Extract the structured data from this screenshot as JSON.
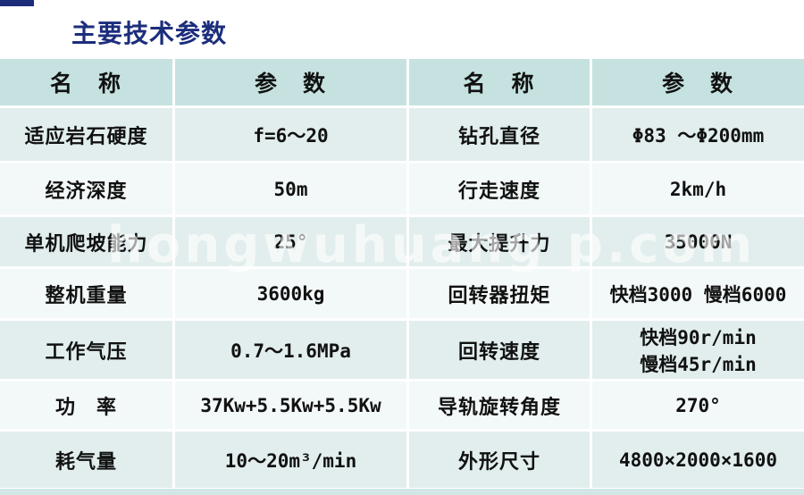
{
  "title": "主要技术参数",
  "watermark": "hongwuhuang p.com",
  "colors": {
    "accent_navy": "#1b2d7b",
    "header_bg": "#c5e2e0",
    "row_teal": "#e1eeed",
    "row_light": "#f3f8f8",
    "bottom_bar": "#d2e7e5"
  },
  "table": {
    "headers": [
      "名　称",
      "参　数",
      "名　称",
      "参　数"
    ],
    "rows": [
      {
        "cells": [
          "适应岩石硬度",
          "f=6～20",
          "钻孔直径",
          "Φ83 ～Φ200mm"
        ]
      },
      {
        "cells": [
          "经济深度",
          "50m",
          "行走速度",
          "2km/h"
        ]
      },
      {
        "cells": [
          "单机爬坡能力",
          "25°",
          "最大提升力",
          "35000N"
        ]
      },
      {
        "cells": [
          "整机重量",
          "3600kg",
          "回转器扭矩",
          "快档3000 慢档6000"
        ]
      },
      {
        "cells": [
          "工作气压",
          "0.7～1.6MPa",
          "回转速度",
          "快档90r/min\n慢档45r/min"
        ]
      },
      {
        "cells": [
          "功　率",
          "37Kw+5.5Kw+5.5Kw",
          "导轨旋转角度",
          "270°"
        ]
      },
      {
        "cells": [
          "耗气量",
          "10～20m³/min",
          "外形尺寸",
          "4800×2000×1600"
        ]
      }
    ]
  }
}
